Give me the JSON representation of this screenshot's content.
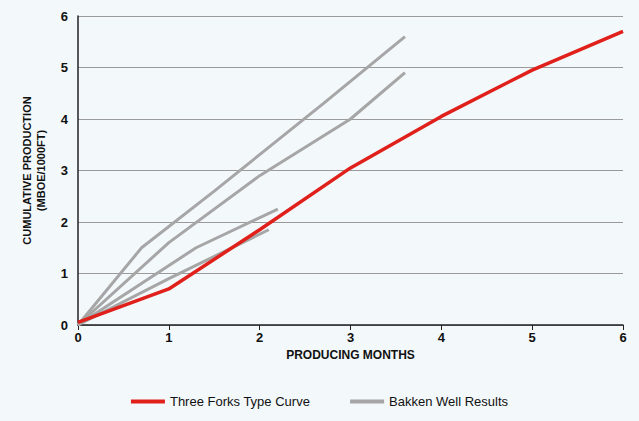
{
  "chart_data": {
    "type": "line",
    "xlabel": "PRODUCING MONTHS",
    "ylabel": "CUMULATIVE PRODUCTION\n(MBOE/1000FT)",
    "xlim": [
      0,
      6
    ],
    "xticks": [
      0,
      1,
      2,
      3,
      4,
      5,
      6
    ],
    "ylim": [
      0,
      6
    ],
    "yticks": [
      0,
      1,
      2,
      3,
      4,
      5,
      6
    ],
    "grid": true,
    "legend": "bottom",
    "series": [
      {
        "name": "Bakken Well Results",
        "color": "#a6a6a6",
        "x": [
          0,
          0.7,
          1.5,
          2.7,
          3.6
        ],
        "values": [
          0,
          1.5,
          2.6,
          4.3,
          5.6
        ]
      },
      {
        "name": "Bakken Well Results",
        "color": "#a6a6a6",
        "x": [
          0,
          1,
          2,
          3,
          3.6
        ],
        "values": [
          0,
          1.6,
          2.9,
          4.0,
          4.9
        ]
      },
      {
        "name": "Bakken Well Results",
        "color": "#a6a6a6",
        "x": [
          0,
          1.3,
          2.2
        ],
        "values": [
          0,
          1.5,
          2.25
        ]
      },
      {
        "name": "Bakken Well Results",
        "color": "#a6a6a6",
        "x": [
          0,
          1,
          2.1
        ],
        "values": [
          0,
          0.9,
          1.85
        ]
      },
      {
        "name": "Three Forks Type Curve",
        "color": "#e0201a",
        "x": [
          0,
          1,
          2,
          3,
          4,
          5,
          6
        ],
        "values": [
          0.05,
          0.7,
          1.85,
          3.05,
          4.05,
          4.95,
          5.7
        ]
      }
    ]
  }
}
